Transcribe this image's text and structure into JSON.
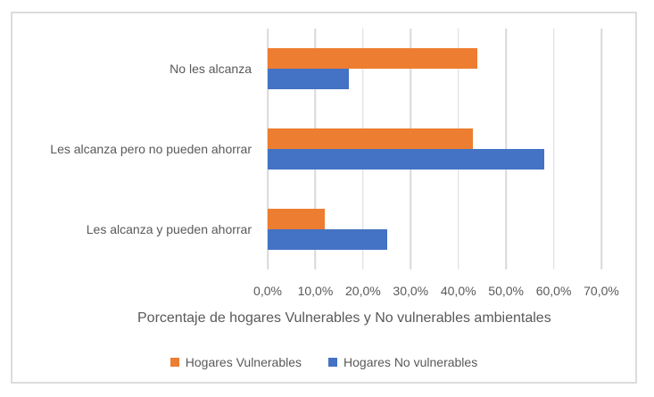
{
  "chart_data": {
    "type": "bar",
    "orientation": "horizontal",
    "categories": [
      "No les alcanza",
      "Les alcanza pero no pueden ahorrar",
      "Les alcanza y pueden ahorrar"
    ],
    "series": [
      {
        "name": "Hogares Vulnerables",
        "color": "#ED7D31",
        "values": [
          44,
          43,
          12
        ]
      },
      {
        "name": "Hogares No vulnerables",
        "color": "#4472C4",
        "values": [
          17,
          58,
          25
        ]
      }
    ],
    "x_ticks": [
      "0,0%",
      "10,0%",
      "20,0%",
      "30,0%",
      "40,0%",
      "50,0%",
      "60,0%",
      "70,0%"
    ],
    "xlim": [
      0,
      70
    ],
    "xlabel": "Porcentaje de hogares Vulnerables y No vulnerables ambientales",
    "title": "",
    "grid": true,
    "legend_position": "bottom",
    "colors": {
      "gridline": "#D9D9D9",
      "text": "#595959",
      "frame_border": "#DCDCDC",
      "background": "#FFFFFF"
    }
  }
}
